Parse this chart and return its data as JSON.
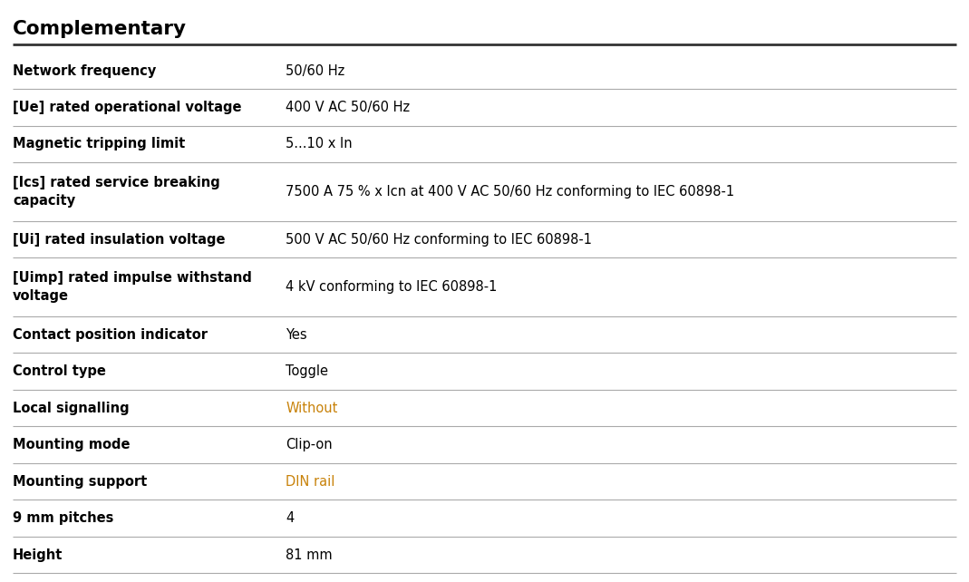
{
  "title": "Complementary",
  "bg_color": "#ffffff",
  "title_color": "#000000",
  "label_color": "#000000",
  "value_color": "#000000",
  "special_value_color": "#c8820a",
  "col_split": 0.295,
  "rows": [
    {
      "label": "Network frequency",
      "value": "50/60 Hz",
      "value_special": false,
      "label_multiline": false
    },
    {
      "label": "[Ue] rated operational voltage",
      "value": "400 V AC 50/60 Hz",
      "value_special": false,
      "label_multiline": false
    },
    {
      "label": "Magnetic tripping limit",
      "value": "5...10 x In",
      "value_special": false,
      "label_multiline": false
    },
    {
      "label": "[Ics] rated service breaking\ncapacity",
      "value": "7500 A 75 % x Icn at 400 V AC 50/60 Hz conforming to IEC 60898-1",
      "value_special": false,
      "label_multiline": true
    },
    {
      "label": "[Ui] rated insulation voltage",
      "value": "500 V AC 50/60 Hz conforming to IEC 60898-1",
      "value_special": false,
      "label_multiline": false
    },
    {
      "label": "[Uimp] rated impulse withstand\nvoltage",
      "value": "4 kV conforming to IEC 60898-1",
      "value_special": false,
      "label_multiline": true
    },
    {
      "label": "Contact position indicator",
      "value": "Yes",
      "value_special": false,
      "label_multiline": false
    },
    {
      "label": "Control type",
      "value": "Toggle",
      "value_special": false,
      "label_multiline": false
    },
    {
      "label": "Local signalling",
      "value": "Without",
      "value_special": true,
      "label_multiline": false
    },
    {
      "label": "Mounting mode",
      "value": "Clip-on",
      "value_special": false,
      "label_multiline": false
    },
    {
      "label": "Mounting support",
      "value": "DIN rail",
      "value_special": true,
      "label_multiline": false
    },
    {
      "label": "9 mm pitches",
      "value": "4",
      "value_special": false,
      "label_multiline": false
    },
    {
      "label": "Height",
      "value": "81 mm",
      "value_special": false,
      "label_multiline": false
    }
  ]
}
